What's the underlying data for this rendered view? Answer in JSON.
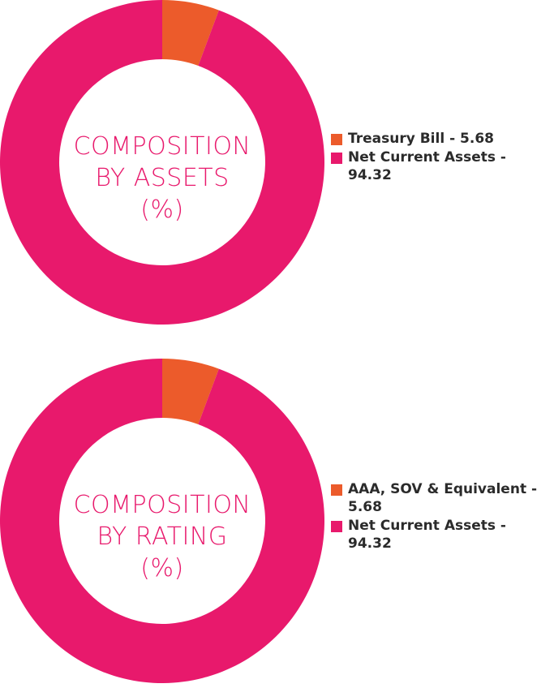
{
  "colors": {
    "orange": "#ec5b2b",
    "pink": "#e8196c"
  },
  "chart_data": [
    {
      "type": "pie",
      "title": [
        "COMPOSITION",
        "BY ASSETS",
        "(%)"
      ],
      "slices": [
        {
          "label": "Treasury Bill - 5.68",
          "value": 5.68,
          "color": "#ec5b2b"
        },
        {
          "label": "Net Current Assets - 94.32",
          "value": 94.32,
          "color": "#e8196c"
        }
      ],
      "legend_position": "right"
    },
    {
      "type": "pie",
      "title": [
        "COMPOSITION",
        "BY RATING",
        "(%)"
      ],
      "slices": [
        {
          "label": "AAA, SOV & Equivalent - 5.68",
          "value": 5.68,
          "color": "#ec5b2b"
        },
        {
          "label": "Net Current Assets - 94.32",
          "value": 94.32,
          "color": "#e8196c"
        }
      ],
      "legend_position": "right"
    }
  ]
}
